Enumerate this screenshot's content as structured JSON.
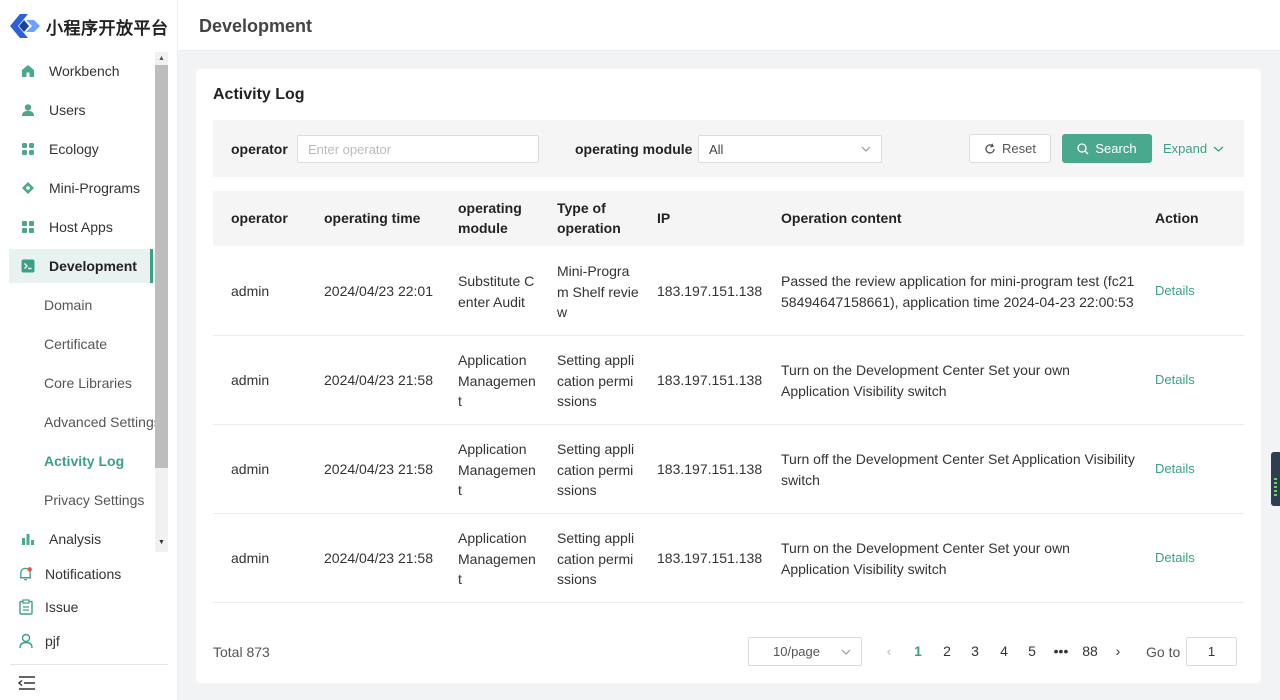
{
  "brand": {
    "logo_text": "小程序开放平台"
  },
  "sidebar": {
    "items": [
      {
        "label": "Workbench",
        "icon": "home-icon"
      },
      {
        "label": "Users",
        "icon": "user-icon"
      },
      {
        "label": "Ecology",
        "icon": "grid-icon"
      },
      {
        "label": "Mini-Programs",
        "icon": "diamond-icon"
      },
      {
        "label": "Host Apps",
        "icon": "grid-icon"
      },
      {
        "label": "Development",
        "icon": "terminal-icon",
        "active": true
      }
    ],
    "sub_items": [
      {
        "label": "Domain"
      },
      {
        "label": "Certificate"
      },
      {
        "label": "Core Libraries"
      },
      {
        "label": "Advanced Settings"
      },
      {
        "label": "Activity Log",
        "active": true
      },
      {
        "label": "Privacy Settings"
      }
    ],
    "analysis": {
      "label": "Analysis",
      "icon": "bar-chart-icon"
    },
    "bottom": [
      {
        "label": "Notifications",
        "icon": "bell-icon",
        "badge": true
      },
      {
        "label": "Issue",
        "icon": "clipboard-icon"
      },
      {
        "label": "pjf",
        "icon": "person-icon"
      }
    ]
  },
  "header": {
    "title": "Development"
  },
  "card": {
    "title": "Activity Log",
    "filter": {
      "operator_label": "operator",
      "operator_placeholder": "Enter operator",
      "module_label": "operating module",
      "module_value": "All",
      "reset_label": "Reset",
      "search_label": "Search",
      "expand_label": "Expand"
    },
    "table": {
      "columns": [
        "operator",
        "operating time",
        "operating module",
        "Type of operation",
        "IP",
        "Operation content",
        "Action"
      ],
      "rows": [
        {
          "operator": "admin",
          "time": "2024/04/23 22:01",
          "module": "Substitute Center Audit",
          "type": "Mini-Program Shelf review",
          "ip": "183.197.151.138",
          "content": "Passed the review application for mini-program test (fc2158494647158661), application time 2024-04-23 22:00:53",
          "action": "Details"
        },
        {
          "operator": "admin",
          "time": "2024/04/23 21:58",
          "module": "Application Management",
          "type": "Setting application permissions",
          "ip": "183.197.151.138",
          "content": "Turn on the Development Center Set your own Application Visibility switch",
          "action": "Details"
        },
        {
          "operator": "admin",
          "time": "2024/04/23 21:58",
          "module": "Application Management",
          "type": "Setting application permissions",
          "ip": "183.197.151.138",
          "content": "Turn off the Development Center Set Application Visibility switch",
          "action": "Details"
        },
        {
          "operator": "admin",
          "time": "2024/04/23 21:58",
          "module": "Application Management",
          "type": "Setting application permissions",
          "ip": "183.197.151.138",
          "content": "Turn on the Development Center Set your own Application Visibility switch",
          "action": "Details"
        }
      ]
    },
    "footer": {
      "total": "Total 873",
      "page_size": "10/page",
      "pages": [
        "1",
        "2",
        "3",
        "4",
        "5",
        "•••",
        "88"
      ],
      "current_page": "1",
      "goto_label": "Go to",
      "goto_value": "1"
    }
  },
  "colors": {
    "accent": "#3aa189",
    "button": "#4aa88e",
    "active_bg": "#e8f3f1"
  }
}
